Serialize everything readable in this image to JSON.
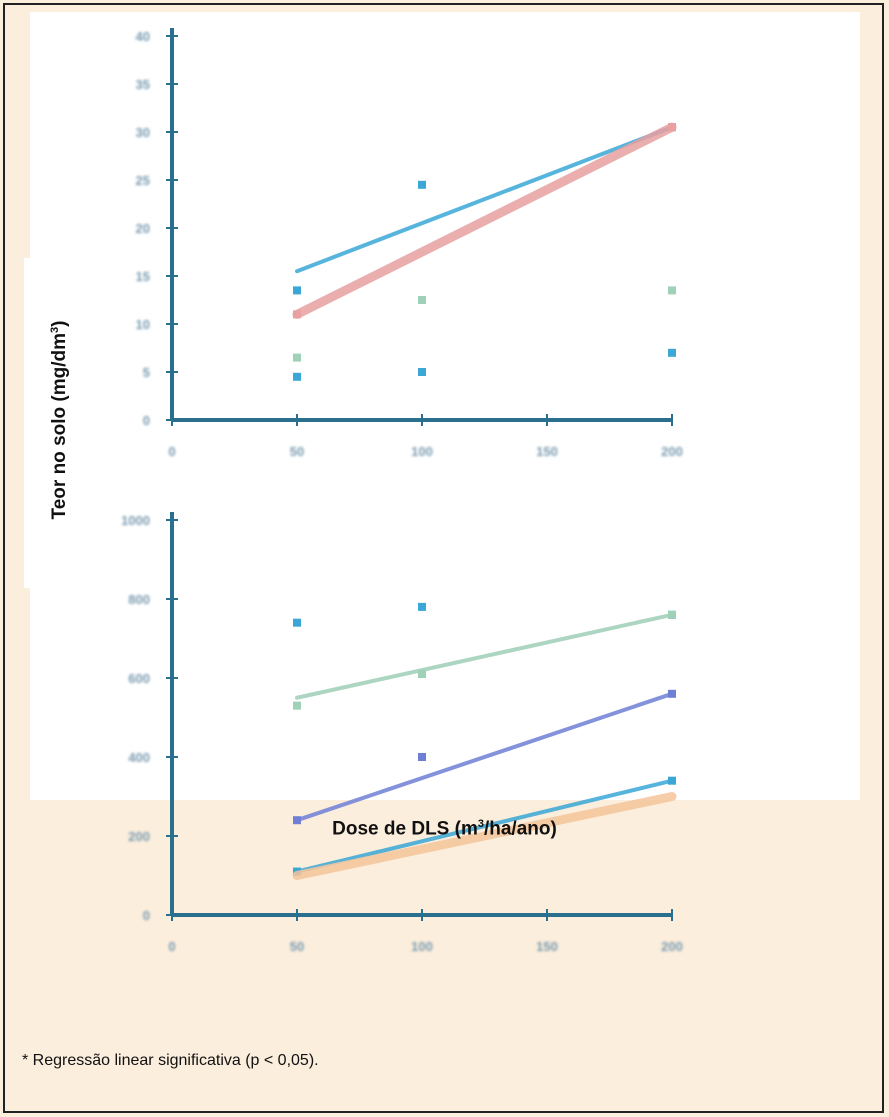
{
  "figure": {
    "ylabel_main": "Teor no solo (mg/dm",
    "ylabel_sup": "3",
    "ylabel_end": ")",
    "xlabel_main": "Dose de DLS (m",
    "xlabel_sup": "3",
    "xlabel_end": "/ha/ano)",
    "footnote": "* Regressão linear significativa (p < 0,05)."
  },
  "colors": {
    "background": "#fbeedd",
    "axis": "#2b6f8e",
    "series_blue": "#3aa7d6",
    "series_pink": "#e8a0a0",
    "series_green": "#9fd0b8",
    "series_purple": "#6f7fd6",
    "series_orange": "#f5c59a",
    "tick_text": "#7a9bb0"
  },
  "chart_data": [
    {
      "type": "scatter",
      "xlim": [
        0,
        200
      ],
      "ylim": [
        0,
        40
      ],
      "x_ticks": [
        0,
        50,
        100,
        150,
        200
      ],
      "y_ticks": [
        0,
        5,
        10,
        15,
        20,
        25,
        30,
        35,
        40
      ],
      "series": [
        {
          "values_x": [
            50,
            100,
            200
          ],
          "values_y": [
            13.5,
            24.5,
            30.5
          ],
          "fit": [
            [
              50,
              15.5
            ],
            [
              200,
              30.5
            ]
          ],
          "color": "blue"
        },
        {
          "values_x": [
            50,
            200
          ],
          "values_y": [
            11,
            30.5
          ],
          "fit": [
            [
              50,
              11
            ],
            [
              200,
              30.5
            ]
          ],
          "color": "pink"
        },
        {
          "values_x": [
            50,
            100,
            200
          ],
          "values_y": [
            6.5,
            12.5,
            13.5
          ],
          "color": "green"
        },
        {
          "values_x": [
            50,
            100,
            200
          ],
          "values_y": [
            4.5,
            5,
            7
          ],
          "color": "blue"
        }
      ]
    },
    {
      "type": "scatter",
      "xlim": [
        0,
        200
      ],
      "ylim": [
        0,
        1000
      ],
      "x_ticks": [
        0,
        50,
        100,
        150,
        200
      ],
      "y_ticks": [
        0,
        200,
        400,
        600,
        800,
        1000
      ],
      "series": [
        {
          "values_x": [
            50,
            100,
            200
          ],
          "values_y": [
            740,
            780,
            760
          ],
          "color": "blue"
        },
        {
          "values_x": [
            50,
            100,
            200
          ],
          "values_y": [
            530,
            610,
            760
          ],
          "fit": [
            [
              50,
              550
            ],
            [
              200,
              760
            ]
          ],
          "color": "green"
        },
        {
          "values_x": [
            50,
            100,
            200
          ],
          "values_y": [
            240,
            400,
            560
          ],
          "fit": [
            [
              50,
              240
            ],
            [
              200,
              560
            ]
          ],
          "color": "purple"
        },
        {
          "values_x": [
            50,
            200
          ],
          "values_y": [
            110,
            340
          ],
          "fit": [
            [
              50,
              110
            ],
            [
              200,
              340
            ]
          ],
          "color": "blue"
        },
        {
          "fit": [
            [
              50,
              100
            ],
            [
              200,
              300
            ]
          ],
          "color": "orange"
        }
      ]
    }
  ]
}
